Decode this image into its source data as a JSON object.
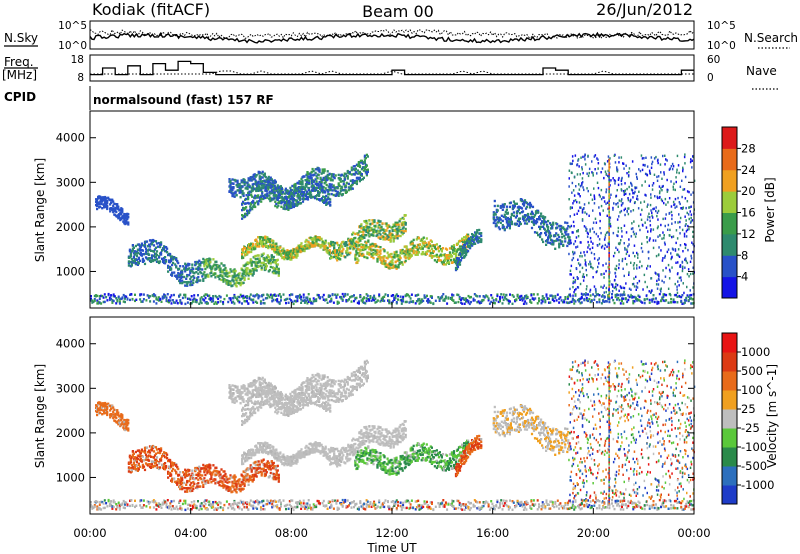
{
  "header": {
    "station": "Kodiak (fitACF)",
    "beam": "Beam 00",
    "date": "26/Jun/2012"
  },
  "noise_panel": {
    "left_label": "N.Sky",
    "right_label": "N.Search",
    "left_ticks": [
      "10^5",
      "10^0"
    ],
    "right_ticks": [
      "10^5",
      "10^0"
    ]
  },
  "freq_panel": {
    "left_label_top": "Freq.",
    "left_label_bottom": "[MHz]",
    "right_label": "Nave",
    "left_ticks": [
      "18",
      "8"
    ],
    "right_ticks": [
      "60",
      "0"
    ]
  },
  "cpid_panel": {
    "label": "CPID",
    "program": "normalsound (fast) 157 RF"
  },
  "chart_data": [
    {
      "type": "heatmap",
      "title": "Power",
      "ylabel": "Slant Range [km]",
      "colorbar_label": "Power [dB]",
      "y_ticks": [
        "1000",
        "2000",
        "3000",
        "4000"
      ],
      "colorbar_ticks": [
        "4",
        "8",
        "12",
        "16",
        "20",
        "24",
        "28"
      ],
      "colorbar_colors": [
        "#1414e6",
        "#2851c8",
        "#2e8a6e",
        "#3a9c4a",
        "#9ccc3a",
        "#f0a020",
        "#e86b1a",
        "#dc1a1a"
      ],
      "ylim": [
        180,
        4600
      ],
      "xlim_hours": [
        0,
        24
      ]
    },
    {
      "type": "heatmap",
      "title": "Velocity",
      "ylabel": "Slant Range [km]",
      "xlabel": "Time UT",
      "colorbar_label": "Velocity [m s^-1]",
      "y_ticks": [
        "1000",
        "2000",
        "3000",
        "4000"
      ],
      "x_ticks": [
        "00:00",
        "04:00",
        "08:00",
        "12:00",
        "16:00",
        "20:00",
        "00:00"
      ],
      "colorbar_ticks": [
        "1000",
        "500",
        "100",
        "25",
        "-25",
        "-100",
        "-500",
        "-1000"
      ],
      "colorbar_colors": [
        "#1e3cc8",
        "#2c6fbd",
        "#2a8a4a",
        "#5ac83a",
        "#bebebe",
        "#f0a020",
        "#e86b1a",
        "#dc3a14",
        "#e81414"
      ],
      "ylim": [
        180,
        4600
      ],
      "xlim_hours": [
        0,
        24
      ]
    }
  ],
  "colors": {
    "ground_scatter": "#b4b4b4"
  }
}
